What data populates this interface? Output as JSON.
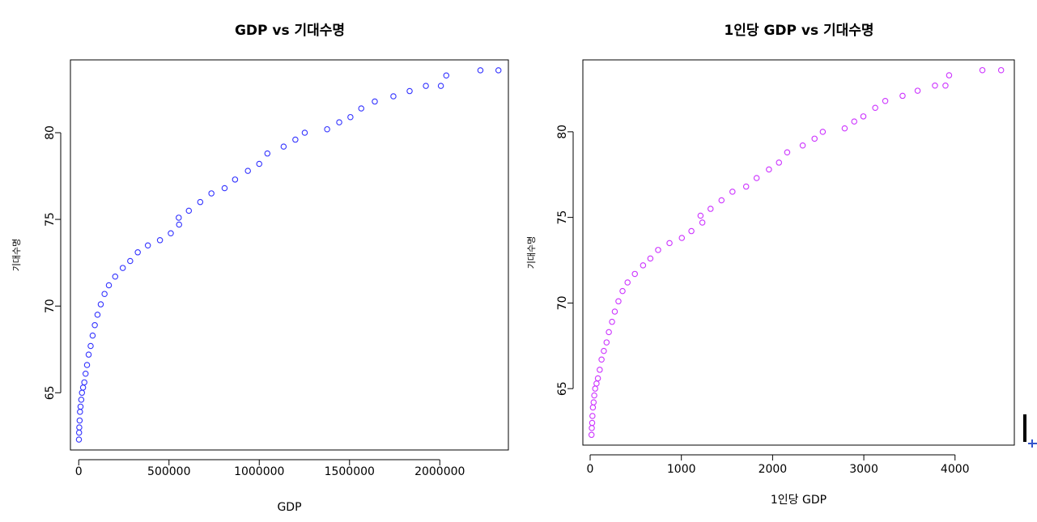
{
  "chart_data": [
    {
      "type": "scatter",
      "title": "GDP vs 기대수명",
      "xlabel": "GDP",
      "ylabel": "기대수명",
      "color": "#3333ff",
      "xlim": [
        -46000,
        2380000
      ],
      "ylim": [
        61.7,
        84.2
      ],
      "xticks": [
        0,
        500000,
        1000000,
        1500000,
        2000000
      ],
      "xtick_labels": [
        "0",
        "500000",
        "1000000",
        "1500000",
        "2000000"
      ],
      "yticks": [
        65,
        70,
        75,
        80
      ],
      "ytick_labels": [
        "65",
        "70",
        "75",
        "80"
      ],
      "grid": false,
      "series": [
        {
          "name": "",
          "points": [
            [
              1000,
              62.3
            ],
            [
              2000,
              62.7
            ],
            [
              3000,
              63.0
            ],
            [
              5000,
              63.4
            ],
            [
              7000,
              63.9
            ],
            [
              10000,
              64.2
            ],
            [
              14000,
              64.6
            ],
            [
              18000,
              65.0
            ],
            [
              24000,
              65.3
            ],
            [
              31000,
              65.6
            ],
            [
              38000,
              66.1
            ],
            [
              46000,
              66.6
            ],
            [
              55000,
              67.2
            ],
            [
              66000,
              67.7
            ],
            [
              77000,
              68.3
            ],
            [
              89000,
              68.9
            ],
            [
              104000,
              69.5
            ],
            [
              122000,
              70.1
            ],
            [
              143000,
              70.7
            ],
            [
              167000,
              71.2
            ],
            [
              202000,
              71.7
            ],
            [
              244000,
              72.2
            ],
            [
              285000,
              72.6
            ],
            [
              327000,
              73.1
            ],
            [
              383000,
              73.5
            ],
            [
              450000,
              73.8
            ],
            [
              510000,
              74.2
            ],
            [
              556000,
              74.7
            ],
            [
              554000,
              75.1
            ],
            [
              610000,
              75.5
            ],
            [
              673000,
              76.0
            ],
            [
              735000,
              76.5
            ],
            [
              808000,
              76.8
            ],
            [
              866000,
              77.3
            ],
            [
              937000,
              77.8
            ],
            [
              1000000,
              78.2
            ],
            [
              1045000,
              78.8
            ],
            [
              1135000,
              79.2
            ],
            [
              1200000,
              79.6
            ],
            [
              1252000,
              80.0
            ],
            [
              1376000,
              80.2
            ],
            [
              1443000,
              80.6
            ],
            [
              1505000,
              80.9
            ],
            [
              1565000,
              81.4
            ],
            [
              1640000,
              81.8
            ],
            [
              1743000,
              82.1
            ],
            [
              1833000,
              82.4
            ],
            [
              1923000,
              82.7
            ],
            [
              2006000,
              82.7
            ],
            [
              2036000,
              83.3
            ],
            [
              2225000,
              83.6
            ],
            [
              2325000,
              83.6
            ]
          ]
        }
      ]
    },
    {
      "type": "scatter",
      "title": "1인당 GDP vs 기대수명",
      "xlabel": "1인당 GDP",
      "ylabel": "기대수명",
      "color": "#cc33ff",
      "xlim": [
        -80,
        4650
      ],
      "ylim": [
        61.7,
        84.2
      ],
      "xticks": [
        0,
        1000,
        2000,
        3000,
        4000
      ],
      "xtick_labels": [
        "0",
        "1000",
        "2000",
        "3000",
        "4000"
      ],
      "yticks": [
        65,
        70,
        75,
        80
      ],
      "ytick_labels": [
        "65",
        "70",
        "75",
        "80"
      ],
      "grid": false,
      "series": [
        {
          "name": "",
          "points": [
            [
              15,
              62.3
            ],
            [
              18,
              62.7
            ],
            [
              22,
              63.0
            ],
            [
              25,
              63.4
            ],
            [
              30,
              63.9
            ],
            [
              38,
              64.2
            ],
            [
              45,
              64.6
            ],
            [
              55,
              65.0
            ],
            [
              70,
              65.3
            ],
            [
              85,
              65.6
            ],
            [
              105,
              66.1
            ],
            [
              125,
              66.7
            ],
            [
              150,
              67.2
            ],
            [
              180,
              67.7
            ],
            [
              205,
              68.3
            ],
            [
              240,
              68.9
            ],
            [
              270,
              69.5
            ],
            [
              310,
              70.1
            ],
            [
              355,
              70.7
            ],
            [
              410,
              71.2
            ],
            [
              490,
              71.7
            ],
            [
              580,
              72.2
            ],
            [
              660,
              72.6
            ],
            [
              745,
              73.1
            ],
            [
              870,
              73.5
            ],
            [
              1005,
              73.8
            ],
            [
              1110,
              74.2
            ],
            [
              1230,
              74.7
            ],
            [
              1210,
              75.1
            ],
            [
              1320,
              75.5
            ],
            [
              1440,
              76.0
            ],
            [
              1560,
              76.5
            ],
            [
              1710,
              76.8
            ],
            [
              1825,
              77.3
            ],
            [
              1960,
              77.8
            ],
            [
              2070,
              78.2
            ],
            [
              2160,
              78.8
            ],
            [
              2330,
              79.2
            ],
            [
              2460,
              79.6
            ],
            [
              2550,
              80.0
            ],
            [
              2790,
              80.2
            ],
            [
              2895,
              80.6
            ],
            [
              2995,
              80.9
            ],
            [
              3125,
              81.4
            ],
            [
              3235,
              81.8
            ],
            [
              3425,
              82.1
            ],
            [
              3590,
              82.4
            ],
            [
              3780,
              82.7
            ],
            [
              3895,
              82.7
            ],
            [
              3935,
              83.3
            ],
            [
              4300,
              83.6
            ],
            [
              4505,
              83.6
            ]
          ]
        }
      ]
    }
  ]
}
